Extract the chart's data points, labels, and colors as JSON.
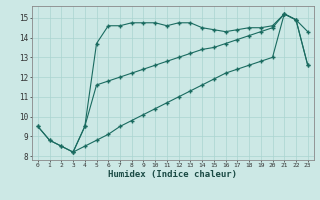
{
  "xlabel": "Humidex (Indice chaleur)",
  "bg_color": "#cce8e5",
  "grid_color": "#aad4d0",
  "line_color": "#1a6b60",
  "xlim": [
    -0.5,
    23.5
  ],
  "ylim": [
    7.8,
    15.6
  ],
  "xticks": [
    0,
    1,
    2,
    3,
    4,
    5,
    6,
    7,
    8,
    9,
    10,
    11,
    12,
    13,
    14,
    15,
    16,
    17,
    18,
    19,
    20,
    21,
    22,
    23
  ],
  "yticks": [
    8,
    9,
    10,
    11,
    12,
    13,
    14,
    15
  ],
  "line1_x": [
    0,
    1,
    2,
    3,
    4,
    5,
    6,
    7,
    8,
    9,
    10,
    11,
    12,
    13,
    14,
    15,
    16,
    17,
    18,
    19,
    20,
    21,
    22,
    23
  ],
  "line1_y": [
    9.5,
    8.8,
    8.5,
    8.2,
    9.5,
    13.7,
    14.6,
    14.6,
    14.75,
    14.75,
    14.75,
    14.6,
    14.75,
    14.75,
    14.5,
    14.4,
    14.3,
    14.4,
    14.5,
    14.5,
    14.6,
    15.2,
    14.9,
    14.3
  ],
  "line2_x": [
    0,
    1,
    2,
    3,
    4,
    5,
    6,
    7,
    8,
    9,
    10,
    11,
    12,
    13,
    14,
    15,
    16,
    17,
    18,
    19,
    20,
    21,
    22,
    23
  ],
  "line2_y": [
    9.5,
    8.8,
    8.5,
    8.2,
    9.5,
    11.6,
    11.8,
    12.0,
    12.2,
    12.4,
    12.6,
    12.8,
    13.0,
    13.2,
    13.4,
    13.5,
    13.7,
    13.9,
    14.1,
    14.3,
    14.5,
    15.2,
    14.9,
    12.6
  ],
  "line3_x": [
    3,
    4,
    5,
    6,
    7,
    8,
    9,
    10,
    11,
    12,
    13,
    14,
    15,
    16,
    17,
    18,
    19,
    20,
    21,
    22,
    23
  ],
  "line3_y": [
    8.2,
    8.5,
    8.8,
    9.1,
    9.5,
    9.8,
    10.1,
    10.4,
    10.7,
    11.0,
    11.3,
    11.6,
    11.9,
    12.2,
    12.4,
    12.6,
    12.8,
    13.0,
    15.2,
    14.9,
    12.6
  ]
}
